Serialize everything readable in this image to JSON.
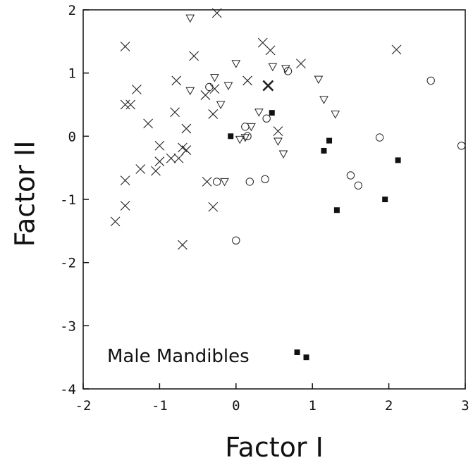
{
  "chart_data": {
    "type": "scatter",
    "title": "",
    "xlabel": "Factor I",
    "ylabel": "Factor II",
    "xlim": [
      -2,
      3
    ],
    "ylim": [
      -4,
      2
    ],
    "xticks": [
      -2,
      -1,
      0,
      1,
      2,
      3
    ],
    "yticks": [
      -4,
      -3,
      -2,
      -1,
      0,
      1,
      2
    ],
    "xtick_labels": [
      "-2",
      "-1",
      "0",
      "1",
      "2",
      "3"
    ],
    "ytick_labels": [
      "-4",
      "-3",
      "-2",
      "-1",
      "0",
      "1",
      "2"
    ],
    "grid": false,
    "annotation": "Male Mandibles",
    "series": [
      {
        "marker": "x",
        "points": [
          [
            -1.58,
            -1.35
          ],
          [
            -1.45,
            1.42
          ],
          [
            -1.45,
            0.5
          ],
          [
            -1.45,
            -0.7
          ],
          [
            -1.45,
            -1.1
          ],
          [
            -1.38,
            0.5
          ],
          [
            -1.3,
            0.74
          ],
          [
            -1.25,
            -0.52
          ],
          [
            -1.15,
            0.2
          ],
          [
            -1.0,
            -0.15
          ],
          [
            -1.0,
            -0.4
          ],
          [
            -1.05,
            -0.55
          ],
          [
            -0.78,
            0.88
          ],
          [
            -0.8,
            0.38
          ],
          [
            -0.85,
            -0.35
          ],
          [
            -0.75,
            -0.35
          ],
          [
            -0.7,
            -0.18
          ],
          [
            -0.65,
            0.12
          ],
          [
            -0.65,
            -0.22
          ],
          [
            -0.7,
            -1.72
          ],
          [
            -0.55,
            1.27
          ],
          [
            -0.4,
            0.65
          ],
          [
            -0.3,
            0.35
          ],
          [
            -0.38,
            -0.72
          ],
          [
            -0.28,
            0.75
          ],
          [
            -0.25,
            1.95
          ],
          [
            -0.3,
            -1.12
          ],
          [
            0.15,
            0.88
          ],
          [
            0.35,
            1.48
          ],
          [
            0.45,
            1.36
          ],
          [
            0.85,
            1.15
          ],
          [
            2.1,
            1.37
          ],
          [
            0.55,
            0.08
          ]
        ]
      },
      {
        "marker": "x-bold",
        "points": [
          [
            0.42,
            0.8
          ]
        ]
      },
      {
        "marker": "triangle-down",
        "points": [
          [
            -0.6,
            1.87
          ],
          [
            -0.6,
            0.72
          ],
          [
            -0.28,
            0.93
          ],
          [
            -0.2,
            0.5
          ],
          [
            -0.1,
            0.8
          ],
          [
            -0.15,
            -0.72
          ],
          [
            0.0,
            1.15
          ],
          [
            0.05,
            -0.05
          ],
          [
            0.12,
            -0.02
          ],
          [
            0.2,
            0.15
          ],
          [
            0.3,
            0.38
          ],
          [
            0.48,
            1.1
          ],
          [
            0.55,
            -0.08
          ],
          [
            0.62,
            -0.28
          ],
          [
            0.65,
            1.07
          ],
          [
            1.08,
            0.9
          ],
          [
            1.15,
            0.58
          ],
          [
            1.3,
            0.35
          ]
        ]
      },
      {
        "marker": "circle",
        "points": [
          [
            -0.35,
            0.78
          ],
          [
            -0.25,
            -0.72
          ],
          [
            0.0,
            -1.65
          ],
          [
            0.12,
            0.15
          ],
          [
            0.15,
            0.0
          ],
          [
            0.18,
            -0.72
          ],
          [
            0.38,
            -0.68
          ],
          [
            0.4,
            0.28
          ],
          [
            0.68,
            1.03
          ],
          [
            1.5,
            -0.62
          ],
          [
            1.6,
            -0.78
          ],
          [
            1.88,
            -0.02
          ],
          [
            2.55,
            0.88
          ],
          [
            2.95,
            -0.15
          ]
        ]
      },
      {
        "marker": "square-filled",
        "points": [
          [
            -0.07,
            0.0
          ],
          [
            0.47,
            0.37
          ],
          [
            1.15,
            -0.23
          ],
          [
            1.22,
            -0.07
          ],
          [
            1.32,
            -1.17
          ],
          [
            1.95,
            -1.0
          ],
          [
            2.12,
            -0.38
          ],
          [
            0.8,
            -3.42
          ],
          [
            0.92,
            -3.5
          ]
        ]
      }
    ]
  }
}
